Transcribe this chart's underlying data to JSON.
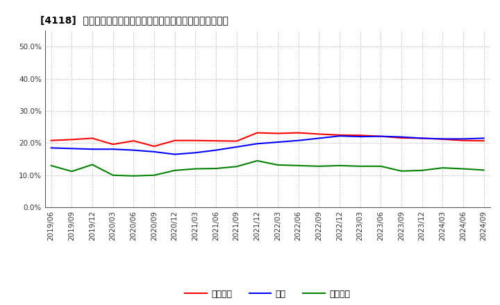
{
  "title": "[4118]  売上債権、在庫、買入債務の総資産に対する比率の推移",
  "legend_labels": [
    "売上債権",
    "在庫",
    "買入債務"
  ],
  "line_colors": [
    "#ff0000",
    "#0000ff",
    "#008000"
  ],
  "x_labels": [
    "2019/06",
    "2019/09",
    "2019/12",
    "2020/03",
    "2020/06",
    "2020/09",
    "2020/12",
    "2021/03",
    "2021/06",
    "2021/09",
    "2021/12",
    "2022/03",
    "2022/06",
    "2022/09",
    "2022/12",
    "2023/03",
    "2023/06",
    "2023/09",
    "2023/12",
    "2024/03",
    "2024/06",
    "2024/09"
  ],
  "urikake": [
    0.208,
    0.211,
    0.215,
    0.196,
    0.207,
    0.19,
    0.208,
    0.208,
    0.207,
    0.206,
    0.232,
    0.23,
    0.232,
    0.228,
    0.225,
    0.224,
    0.221,
    0.216,
    0.215,
    0.212,
    0.208,
    0.207
  ],
  "zaiko": [
    0.185,
    0.183,
    0.181,
    0.181,
    0.178,
    0.173,
    0.165,
    0.17,
    0.178,
    0.188,
    0.198,
    0.203,
    0.208,
    0.215,
    0.222,
    0.22,
    0.221,
    0.219,
    0.215,
    0.213,
    0.213,
    0.215
  ],
  "kaiire": [
    0.13,
    0.112,
    0.133,
    0.1,
    0.098,
    0.1,
    0.115,
    0.12,
    0.121,
    0.127,
    0.145,
    0.132,
    0.13,
    0.128,
    0.13,
    0.128,
    0.128,
    0.113,
    0.115,
    0.123,
    0.12,
    0.116
  ],
  "ylim": [
    0.0,
    0.55
  ],
  "yticks": [
    0.0,
    0.1,
    0.2,
    0.3,
    0.4,
    0.5
  ],
  "background_color": "#ffffff",
  "plot_bg_color": "#ffffff",
  "grid_color": "#aaaaaa"
}
